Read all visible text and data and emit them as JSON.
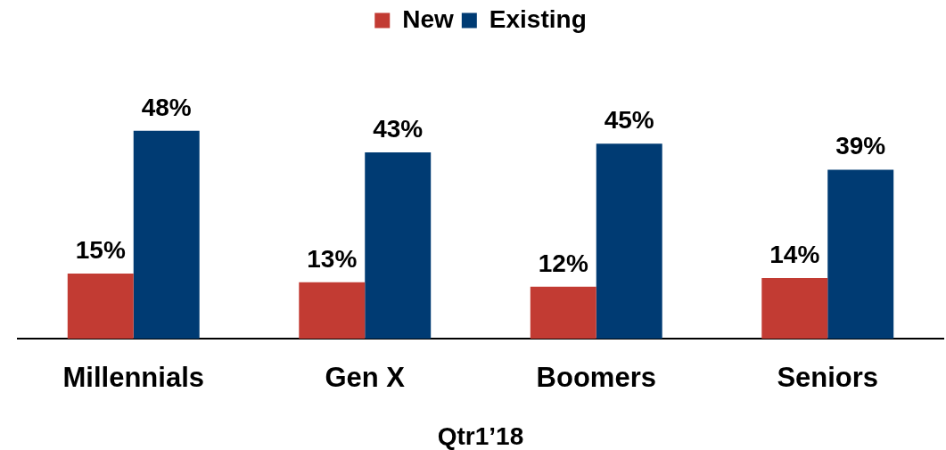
{
  "chart_data": {
    "type": "bar",
    "categories": [
      "Millennials",
      "Gen X",
      "Boomers",
      "Seniors"
    ],
    "series": [
      {
        "name": "New",
        "color": "#c23b33",
        "values": [
          15,
          13,
          12,
          14
        ],
        "value_labels": [
          "15%",
          "13%",
          "12%",
          "14%"
        ]
      },
      {
        "name": "Existing",
        "color": "#003b73",
        "values": [
          48,
          43,
          45,
          39
        ],
        "value_labels": [
          "48%",
          "43%",
          "45%",
          "39%"
        ]
      }
    ],
    "xlabel": "Qtr1’18",
    "legend": "top",
    "tick_labels": "x"
  }
}
